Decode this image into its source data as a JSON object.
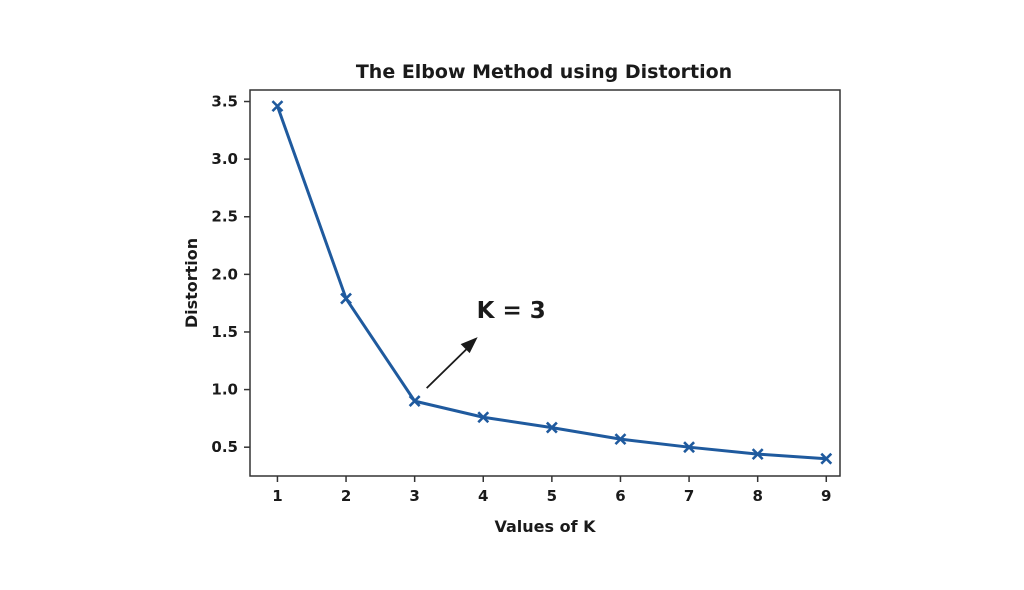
{
  "chart_data": {
    "type": "line",
    "title": "The Elbow Method using Distortion",
    "xlabel": "Values of K",
    "ylabel": "Distortion",
    "x": [
      1,
      2,
      3,
      4,
      5,
      6,
      7,
      8,
      9
    ],
    "x_ticks": [
      "1",
      "2",
      "3",
      "4",
      "5",
      "6",
      "7",
      "8",
      "9"
    ],
    "y_ticks": [
      "0.5",
      "1.0",
      "1.5",
      "2.0",
      "2.5",
      "3.0",
      "3.5"
    ],
    "y_tick_values": [
      0.5,
      1.0,
      1.5,
      2.0,
      2.5,
      3.0,
      3.5
    ],
    "xlim": [
      0.6,
      9.2
    ],
    "ylim": [
      0.25,
      3.6
    ],
    "series": [
      {
        "values": [
          3.46,
          1.79,
          0.9,
          0.76,
          0.67,
          0.57,
          0.5,
          0.44,
          0.4
        ],
        "marker": "x"
      }
    ],
    "annotation": {
      "text": "K = 3",
      "point_x": 3,
      "point_y": 0.9
    },
    "grid": false,
    "colors": {
      "line": "#1f5a9e",
      "axis": "#333333",
      "text": "#1a1a1a"
    }
  }
}
